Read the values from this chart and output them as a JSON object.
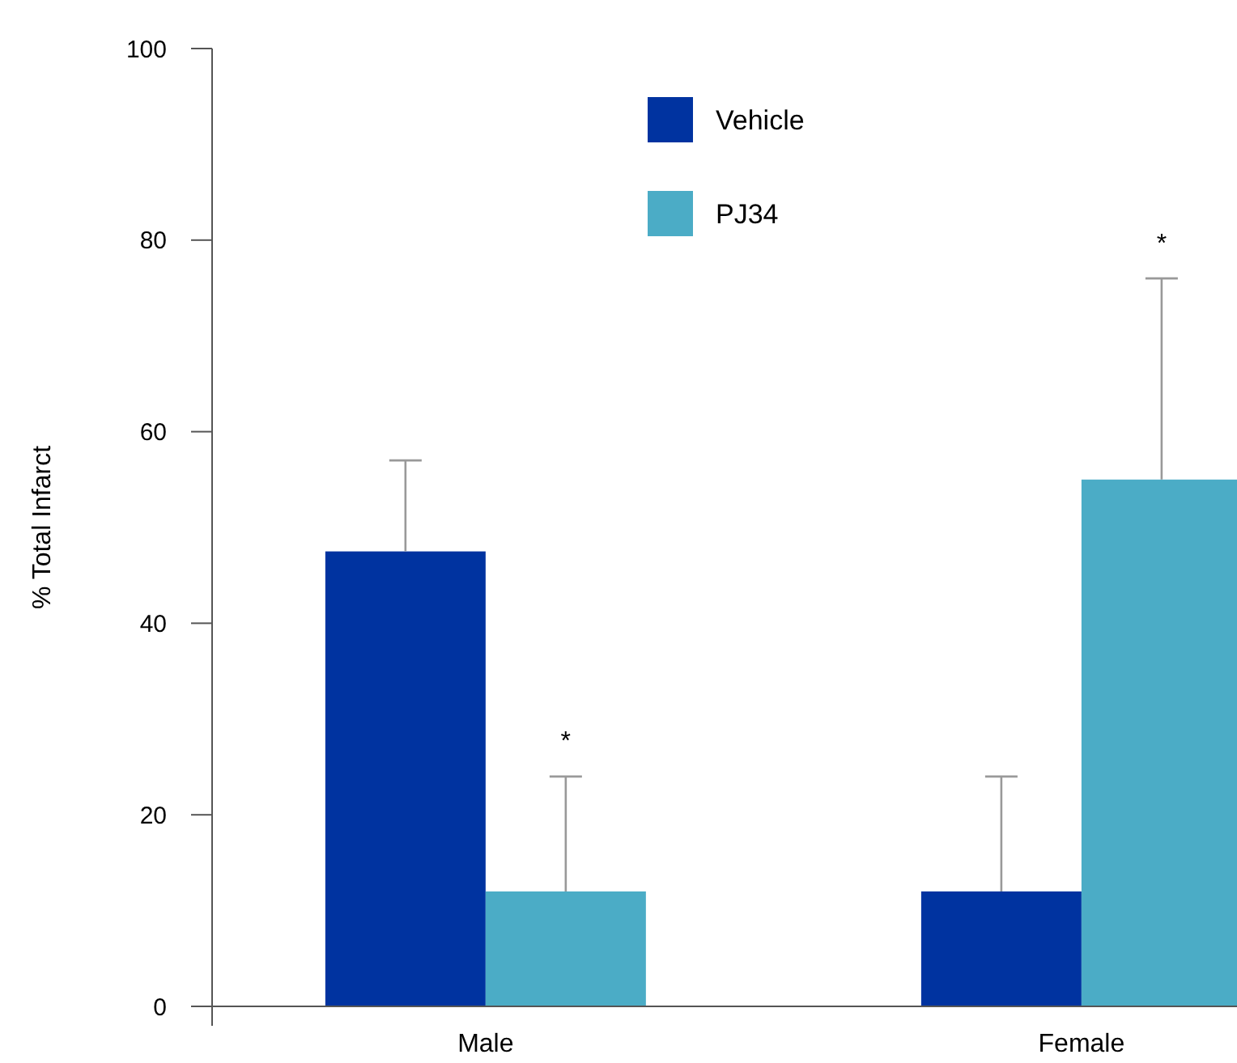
{
  "chart_data": {
    "type": "bar",
    "ylabel": "% Total Infarct",
    "categories": [
      "Male",
      "Female"
    ],
    "series": [
      {
        "name": "Vehicle",
        "color": "#0033a0",
        "values": [
          47.5,
          12
        ],
        "errors": [
          [
            47.5,
            57
          ],
          [
            12,
            24
          ]
        ]
      },
      {
        "name": "PJ34",
        "color": "#4bacc6",
        "values": [
          12,
          55
        ],
        "errors": [
          [
            12,
            24
          ],
          [
            55,
            76
          ]
        ]
      }
    ],
    "ylim": [
      0,
      100
    ],
    "yticks": [
      0,
      20,
      40,
      60,
      80,
      100
    ],
    "grid": false,
    "legend": "top",
    "annotations": [
      "*",
      "*"
    ]
  }
}
